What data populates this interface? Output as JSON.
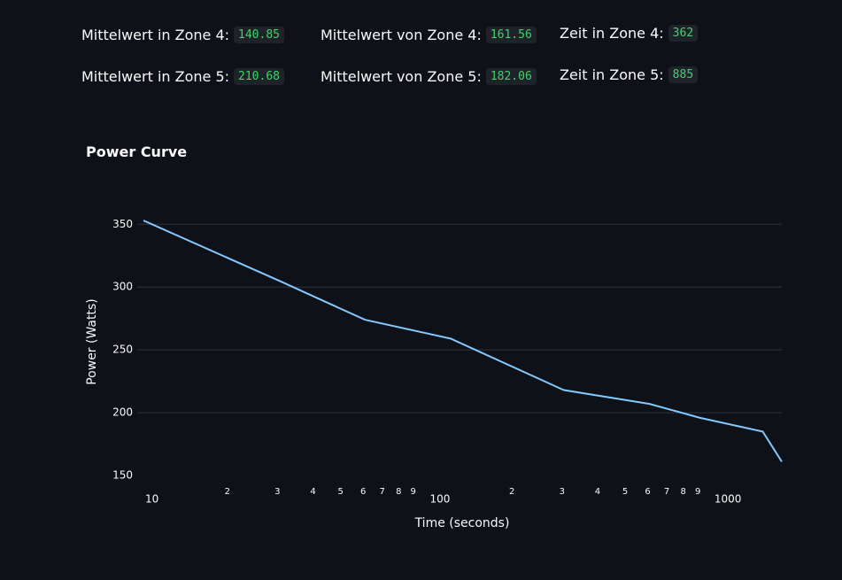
{
  "metrics": [
    [
      {
        "label": "Mittelwert in Zone 4:",
        "value": "140.85"
      },
      {
        "label": "Mittelwert von Zone 4:",
        "value": "161.56"
      },
      {
        "label": "Zeit in Zone 4:",
        "value": "362"
      }
    ],
    [
      {
        "label": "Mittelwert in Zone 5:",
        "value": "210.68"
      },
      {
        "label": "Mittelwert von Zone 5:",
        "value": "182.06"
      },
      {
        "label": "Zeit in Zone 5:",
        "value": "885"
      }
    ]
  ],
  "chart_data": {
    "type": "line",
    "title": "Power Curve",
    "x_label": "Time (seconds)",
    "y_label": "Power (Watts)",
    "x": [
      10,
      30,
      60,
      120,
      300,
      600,
      900,
      1500,
      1750
    ],
    "values": [
      353,
      305,
      274,
      259,
      218,
      207,
      196,
      185,
      161
    ],
    "color": "#83c9ff",
    "x_log": true,
    "grid": true,
    "xlim": [
      10,
      1750
    ],
    "ylim": [
      150,
      353
    ],
    "xticks": [
      10,
      {
        "value": 20,
        "label": "2"
      },
      {
        "value": 30,
        "label": "3"
      },
      {
        "value": 40,
        "label": "4"
      },
      {
        "value": 50,
        "label": "5"
      },
      {
        "value": 60,
        "label": "6"
      },
      {
        "value": 70,
        "label": "7"
      },
      {
        "value": 80,
        "label": "8"
      },
      {
        "value": 90,
        "label": "9"
      },
      100,
      {
        "value": 200,
        "label": "2"
      },
      {
        "value": 300,
        "label": "3"
      },
      {
        "value": 400,
        "label": "4"
      },
      {
        "value": 500,
        "label": "5"
      },
      {
        "value": 600,
        "label": "6"
      },
      {
        "value": 700,
        "label": "7"
      },
      {
        "value": 800,
        "label": "8"
      },
      {
        "value": 900,
        "label": "9"
      },
      1000
    ],
    "yticks": [
      150,
      200,
      250,
      300,
      350
    ]
  }
}
